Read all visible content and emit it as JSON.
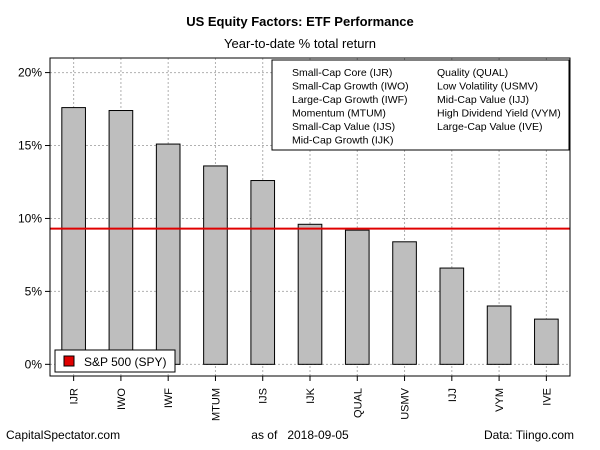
{
  "title": "US Equity Factors: ETF Performance",
  "subtitle": "Year-to-date % total return",
  "footer": {
    "left": "CapitalSpectator.com",
    "center_prefix": "as of",
    "center_date": "2018-09-05",
    "right": "Data: Tiingo.com"
  },
  "colors": {
    "bar_fill": "#bebebe",
    "bar_stroke": "#000000",
    "reference_line": "#e00000",
    "grid": "#b0b0b0"
  },
  "chart_data": {
    "type": "bar",
    "title": "US Equity Factors: ETF Performance",
    "subtitle": "Year-to-date % total return",
    "categories": [
      "IJR",
      "IWO",
      "IWF",
      "MTUM",
      "IJS",
      "IJK",
      "QUAL",
      "USMV",
      "IJJ",
      "VYM",
      "IVE"
    ],
    "values": [
      17.6,
      17.4,
      15.1,
      13.6,
      12.6,
      9.6,
      9.2,
      8.4,
      6.6,
      4.0,
      3.1
    ],
    "y_ticks": [
      "0%",
      "5%",
      "10%",
      "15%",
      "20%"
    ],
    "y_tick_values": [
      0,
      5,
      10,
      15,
      20
    ],
    "ylim": [
      -0.8,
      21
    ],
    "grid": true,
    "reference_line": {
      "name": "S&P 500 (SPY)",
      "value": 9.3
    },
    "legend_items": [
      "Small-Cap Core (IJR)",
      "Small-Cap Growth (IWO)",
      "Large-Cap Growth (IWF)",
      "Momentum (MTUM)",
      "Small-Cap Value (IJS)",
      "Mid-Cap Growth (IJK)",
      "Quality (QUAL)",
      "Low Volatility (USMV)",
      "Mid-Cap Value (IJJ)",
      "High Dividend Yield (VYM)",
      "Large-Cap Value (IVE)"
    ],
    "legend_placement": "top-right",
    "reference_legend_placement": "bottom-left"
  }
}
